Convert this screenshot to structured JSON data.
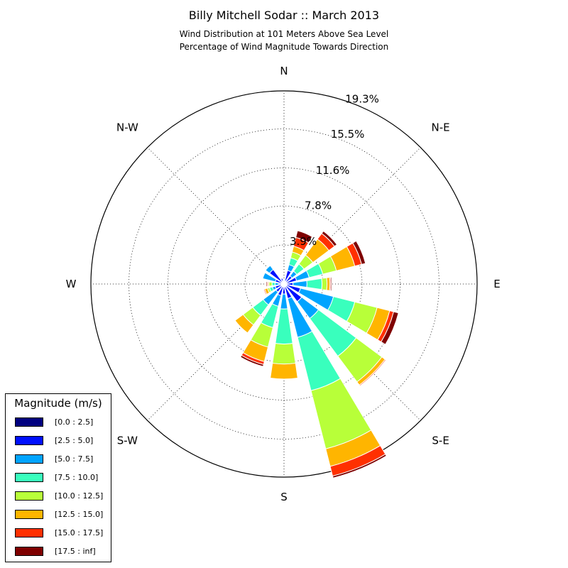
{
  "title": "Billy Mitchell Sodar :: March 2013",
  "subtitle_line1": "Wind Distribution at 101 Meters Above Sea Level",
  "subtitle_line2": "Percentage of Wind Magnitude Towards Direction",
  "legend": {
    "title": "Magnitude (m/s)",
    "items": [
      {
        "label": "[0.0 : 2.5]",
        "color": "#00007f"
      },
      {
        "label": "[2.5 : 5.0]",
        "color": "#0010ff"
      },
      {
        "label": "[5.0 : 7.5]",
        "color": "#00a4ff"
      },
      {
        "label": "[7.5 : 10.0]",
        "color": "#39ffbd"
      },
      {
        "label": "[10.0 : 12.5]",
        "color": "#b8ff39"
      },
      {
        "label": "[12.5 : 15.0]",
        "color": "#ffb500"
      },
      {
        "label": "[15.0 : 17.5]",
        "color": "#ff3000"
      },
      {
        "label": "[17.5 : inf]",
        "color": "#7f0000"
      }
    ]
  },
  "chart_data": {
    "type": "windrose",
    "direction_labels": [
      {
        "label": "N",
        "angle": 0
      },
      {
        "label": "N-E",
        "angle": 45
      },
      {
        "label": "E",
        "angle": 90
      },
      {
        "label": "S-E",
        "angle": 135
      },
      {
        "label": "S",
        "angle": 180
      },
      {
        "label": "S-W",
        "angle": 225
      },
      {
        "label": "W",
        "angle": 270
      },
      {
        "label": "N-W",
        "angle": 315
      }
    ],
    "radial_labels": [
      "3.9%",
      "7.8%",
      "11.6%",
      "15.5%",
      "19.3%"
    ],
    "radial_values": [
      3.9,
      7.8,
      11.6,
      15.5,
      19.3
    ],
    "rmax": 19.3,
    "bins": [
      "[0.0 : 2.5]",
      "[2.5 : 5.0]",
      "[5.0 : 7.5]",
      "[7.5 : 10.0]",
      "[10.0 : 12.5]",
      "[12.5 : 15.0]",
      "[15.0 : 17.5]",
      "[17.5 : inf]"
    ],
    "bin_colors": [
      "#00007f",
      "#0010ff",
      "#00a4ff",
      "#39ffbd",
      "#b8ff39",
      "#ffb500",
      "#ff3000",
      "#7f0000"
    ],
    "sectors": [
      {
        "direction": 0,
        "cum": [
          0.3,
          0.3,
          0.4,
          0.4,
          0.4,
          0.4,
          0.4,
          0.4
        ]
      },
      {
        "direction": 22.5,
        "cum": [
          0.3,
          1.4,
          2.0,
          2.7,
          3.3,
          3.9,
          4.8,
          5.5
        ]
      },
      {
        "direction": 45,
        "cum": [
          0.3,
          1.0,
          1.6,
          2.5,
          3.6,
          5.6,
          6.3,
          6.6
        ]
      },
      {
        "direction": 67.5,
        "cum": [
          0.3,
          1.3,
          2.6,
          4.0,
          5.4,
          7.3,
          8.0,
          8.4
        ]
      },
      {
        "direction": 90,
        "cum": [
          0.3,
          0.9,
          2.3,
          3.8,
          4.3,
          4.6,
          4.7,
          4.8
        ]
      },
      {
        "direction": 112.5,
        "cum": [
          0.3,
          1.7,
          5.1,
          7.3,
          9.6,
          10.9,
          11.3,
          11.8
        ]
      },
      {
        "direction": 135,
        "cum": [
          0.3,
          2.2,
          4.3,
          9.0,
          12.2,
          12.6,
          12.7,
          12.7
        ]
      },
      {
        "direction": 157.5,
        "cum": [
          0.3,
          1.5,
          5.5,
          11.0,
          17.0,
          18.8,
          19.8,
          20.0
        ]
      },
      {
        "direction": 180,
        "cum": [
          0.3,
          1.0,
          2.5,
          6.0,
          8.0,
          9.5,
          9.5,
          9.5
        ]
      },
      {
        "direction": 202.5,
        "cum": [
          0.3,
          1.2,
          2.3,
          4.5,
          6.5,
          8.0,
          8.3,
          8.5
        ]
      },
      {
        "direction": 225,
        "cum": [
          0.3,
          1.0,
          2.6,
          3.9,
          5.1,
          6.1,
          6.1,
          6.1
        ]
      },
      {
        "direction": 247.5,
        "cum": [
          0.3,
          0.9,
          1.2,
          1.5,
          1.7,
          2.0,
          2.1,
          2.1
        ]
      },
      {
        "direction": 270,
        "cum": [
          0.3,
          0.5,
          0.9,
          1.2,
          1.5,
          1.6,
          1.7,
          1.8
        ]
      },
      {
        "direction": 292.5,
        "cum": [
          0.3,
          0.9,
          2.2,
          2.2,
          2.2,
          2.2,
          2.2,
          2.2
        ]
      },
      {
        "direction": 315,
        "cum": [
          0.3,
          1.8,
          2.3,
          2.3,
          2.3,
          2.3,
          2.3,
          2.3
        ]
      },
      {
        "direction": 337.5,
        "cum": [
          0.3,
          0.6,
          0.6,
          0.6,
          0.6,
          0.6,
          0.6,
          0.6
        ]
      }
    ]
  }
}
